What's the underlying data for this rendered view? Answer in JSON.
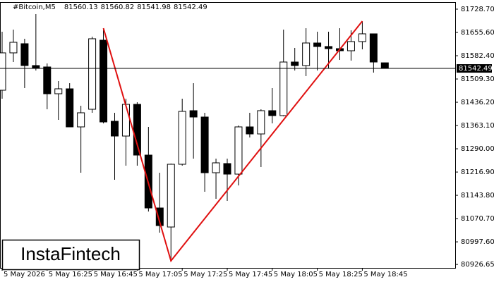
{
  "chart_data": {
    "type": "candlestick",
    "title": "#Bitcoin,M5",
    "watermark": "InstaFintech",
    "categories": [
      "5 May 2026",
      null,
      null,
      null,
      "5 May 16:25",
      null,
      null,
      null,
      "5 May 16:45",
      null,
      null,
      null,
      "5 May 17:05",
      null,
      null,
      null,
      "5 May 17:25",
      null,
      null,
      null,
      "5 May 17:45",
      null,
      null,
      null,
      "5 May 18:05",
      null,
      null,
      null,
      "5 May 18:25",
      null,
      null,
      null,
      "5 May 18:45",
      null,
      null
    ],
    "open": [
      81473.97,
      81591.37,
      81620.16,
      81551.5,
      81547.07,
      81462.9,
      81478.4,
      81358.79,
      81414.17,
      81631.24,
      81376.51,
      81330.0,
      81429.67,
      81270.19,
      81104.07,
      81044.26,
      81241.4,
      81409.74,
      81389.8,
      81214.82,
      81243.61,
      81210.39,
      81358.79,
      81336.64,
      81409.74,
      81394.23,
      81562.57,
      81551.5,
      81622.38,
      81611.3,
      81604.66,
      81598.01,
      81626.81,
      81651.17,
      81560.13
    ],
    "high": [
      81657.82,
      81664.46,
      81635.67,
      81713.19,
      81558.14,
      81502.77,
      81496.12,
      81425.24,
      81642.31,
      81668.89,
      81403.09,
      81447.39,
      81436.32,
      81358.79,
      81214.82,
      81243.61,
      81447.39,
      81496.12,
      81403.09,
      81259.12,
      81259.12,
      81363.22,
      81403.09,
      81414.17,
      81480.62,
      81664.46,
      81606.87,
      81668.89,
      81657.82,
      81657.82,
      81668.89,
      81662.25,
      81691.04,
      81651.17,
      81560.82
    ],
    "low": [
      81447.39,
      81562.57,
      81480.62,
      81535.99,
      81414.17,
      81380.94,
      81358.79,
      81214.82,
      81403.09,
      81369.87,
      81192.67,
      81236.97,
      81236.97,
      81092.99,
      81026.54,
      80937.94,
      81236.97,
      81259.12,
      81155.01,
      81132.86,
      81126.22,
      81174.95,
      81325.57,
      81232.54,
      81369.87,
      81392.02,
      81535.99,
      81518.27,
      81535.99,
      81542.64,
      81569.22,
      81567.0,
      81602.44,
      81529.35,
      81541.98
    ],
    "close": [
      81591.37,
      81624.59,
      81551.5,
      81542.64,
      81462.9,
      81478.4,
      81358.79,
      81403.09,
      81635.67,
      81374.3,
      81330.0,
      81429.67,
      81270.19,
      81104.07,
      81048.69,
      81241.4,
      81407.52,
      81389.8,
      81214.82,
      81245.83,
      81210.39,
      81358.79,
      81336.64,
      81409.74,
      81394.23,
      81562.57,
      81551.5,
      81622.38,
      81611.3,
      81604.66,
      81598.01,
      81626.81,
      81651.17,
      81562.57,
      81542.49
    ],
    "up_color": "#ffffff",
    "down_color": "#000000",
    "pattern": {
      "color": "#e01010",
      "points": [
        {
          "x": 9,
          "y": 81668.89
        },
        {
          "x": 15,
          "y": 80937.94
        },
        {
          "x": 32,
          "y": 81691.04
        }
      ]
    },
    "ylim": [
      80915.8,
      81750.8
    ],
    "yticks": [
      {
        "value": 81728.7,
        "label": "81728.70"
      },
      {
        "value": 81655.6,
        "label": "81655.60"
      },
      {
        "value": 81582.4,
        "label": "81582.40"
      },
      {
        "value": 81509.3,
        "label": "81509.30"
      },
      {
        "value": 81436.2,
        "label": "81436.20"
      },
      {
        "value": 81363.1,
        "label": "81363.10"
      },
      {
        "value": 81290,
        "label": "81290.00"
      },
      {
        "value": 81216.9,
        "label": "81216.90"
      },
      {
        "value": 81143.8,
        "label": "81143.80"
      },
      {
        "value": 81070.7,
        "label": "81070.70"
      },
      {
        "value": 80997.6,
        "label": "80997.60"
      },
      {
        "value": 80926.65,
        "label": "80926.65"
      }
    ]
  }
}
